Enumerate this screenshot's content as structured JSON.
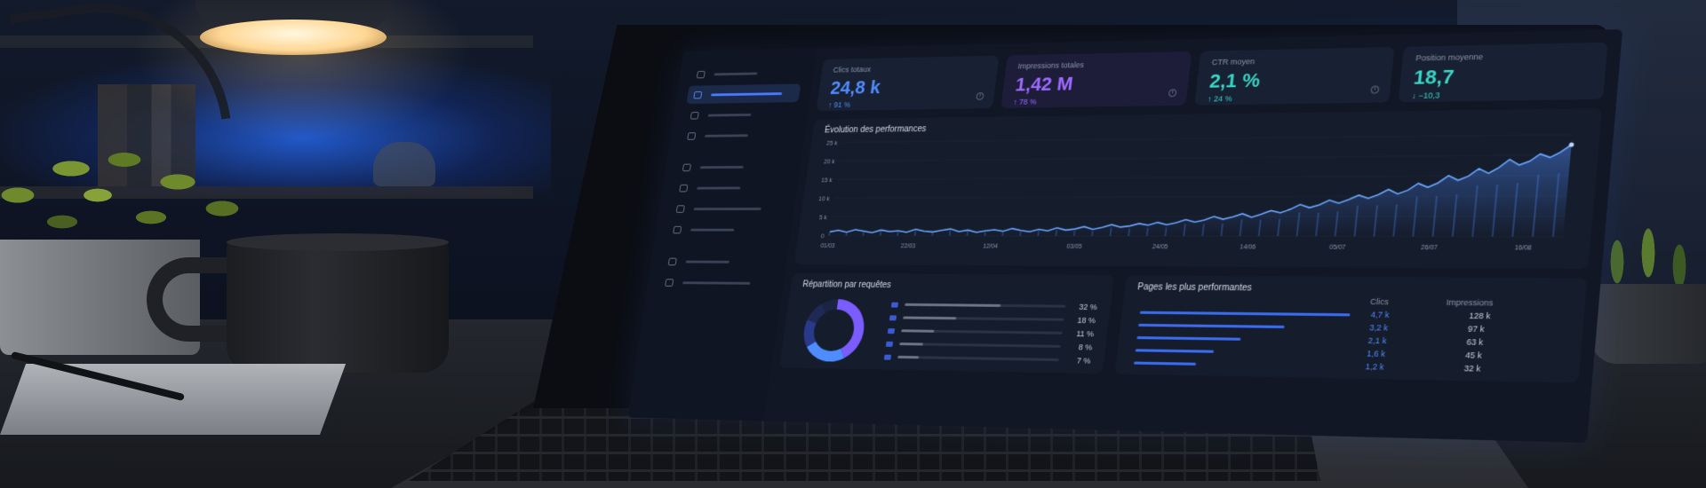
{
  "kpis": [
    {
      "label": "Clics totaux",
      "value": "24,8 k",
      "delta": "↑ 91 %",
      "color": "#4f8cff",
      "delta_color": "#4f8cff"
    },
    {
      "label": "Impressions totales",
      "value": "1,42 M",
      "delta": "↑ 78 %",
      "color": "#9d6bff",
      "delta_color": "#9d6bff"
    },
    {
      "label": "CTR moyen",
      "value": "2,1 %",
      "delta": "↑ 24 %",
      "color": "#3ad6c6",
      "delta_color": "#3ad6c6"
    },
    {
      "label": "Position moyenne",
      "value": "18,7",
      "delta": "↓ −10,3",
      "color": "#3ad6c6",
      "delta_color": "#3ad6c6"
    }
  ],
  "performance_chart": {
    "title": "Évolution des performances"
  },
  "queries_card": {
    "title": "Répartition par requêtes",
    "rows": [
      {
        "pct": "32 %",
        "share": 0.32
      },
      {
        "pct": "18 %",
        "share": 0.18
      },
      {
        "pct": "11 %",
        "share": 0.11
      },
      {
        "pct": "8 %",
        "share": 0.08
      },
      {
        "pct": "7 %",
        "share": 0.07
      }
    ],
    "donut_colors": [
      "#7b5cff",
      "#4f8cff",
      "#2a3a8a",
      "#1e2a55"
    ]
  },
  "pages_card": {
    "title": "Pages les plus performantes",
    "col_clicks": "Clics",
    "col_impressions": "Impressions",
    "rows": [
      {
        "clicks": "4,7 k",
        "impressions": "128 k",
        "share": 1.0
      },
      {
        "clicks": "3,2 k",
        "impressions": "97 k",
        "share": 0.7
      },
      {
        "clicks": "2,1 k",
        "impressions": "63 k",
        "share": 0.5
      },
      {
        "clicks": "1,6 k",
        "impressions": "45 k",
        "share": 0.38
      },
      {
        "clicks": "1,2 k",
        "impressions": "32 k",
        "share": 0.3
      }
    ]
  },
  "chart_data": {
    "type": "line",
    "title": "Évolution des performances",
    "xlabel": "",
    "ylabel": "",
    "x_ticks": [
      "01/03",
      "22/03",
      "12/04",
      "03/05",
      "24/05",
      "14/06",
      "05/07",
      "26/07",
      "16/08"
    ],
    "y_ticks": [
      "0",
      "5 k",
      "10 k",
      "15 k",
      "20 k",
      "25 k"
    ],
    "ylim": [
      0,
      25000
    ],
    "series": [
      {
        "values": [
          1000,
          1400,
          900,
          1600,
          1200,
          800,
          1500,
          1100,
          1300,
          900,
          1700,
          1200,
          1000,
          1400,
          1800,
          1100,
          1500,
          900,
          1300,
          1600,
          1200,
          1900,
          1400,
          1100,
          1700,
          1300,
          2100,
          1500,
          1800,
          2400,
          1700,
          2200,
          2900,
          2300,
          2600,
          3200,
          2800,
          3500,
          2900,
          3400,
          4200,
          3600,
          4100,
          5000,
          4300,
          4900,
          5700,
          4800,
          5600,
          6500,
          5900,
          6800,
          8000,
          7200,
          7900,
          9100,
          8300,
          9200,
          10300,
          9500,
          10400,
          11700,
          10600,
          11500,
          13200,
          12200,
          13300,
          15100,
          13900,
          14900,
          16800,
          15600,
          17000,
          19000,
          17600,
          18500,
          20300,
          19400,
          20700,
          22500
        ]
      }
    ],
    "color": "#4f8cff"
  }
}
